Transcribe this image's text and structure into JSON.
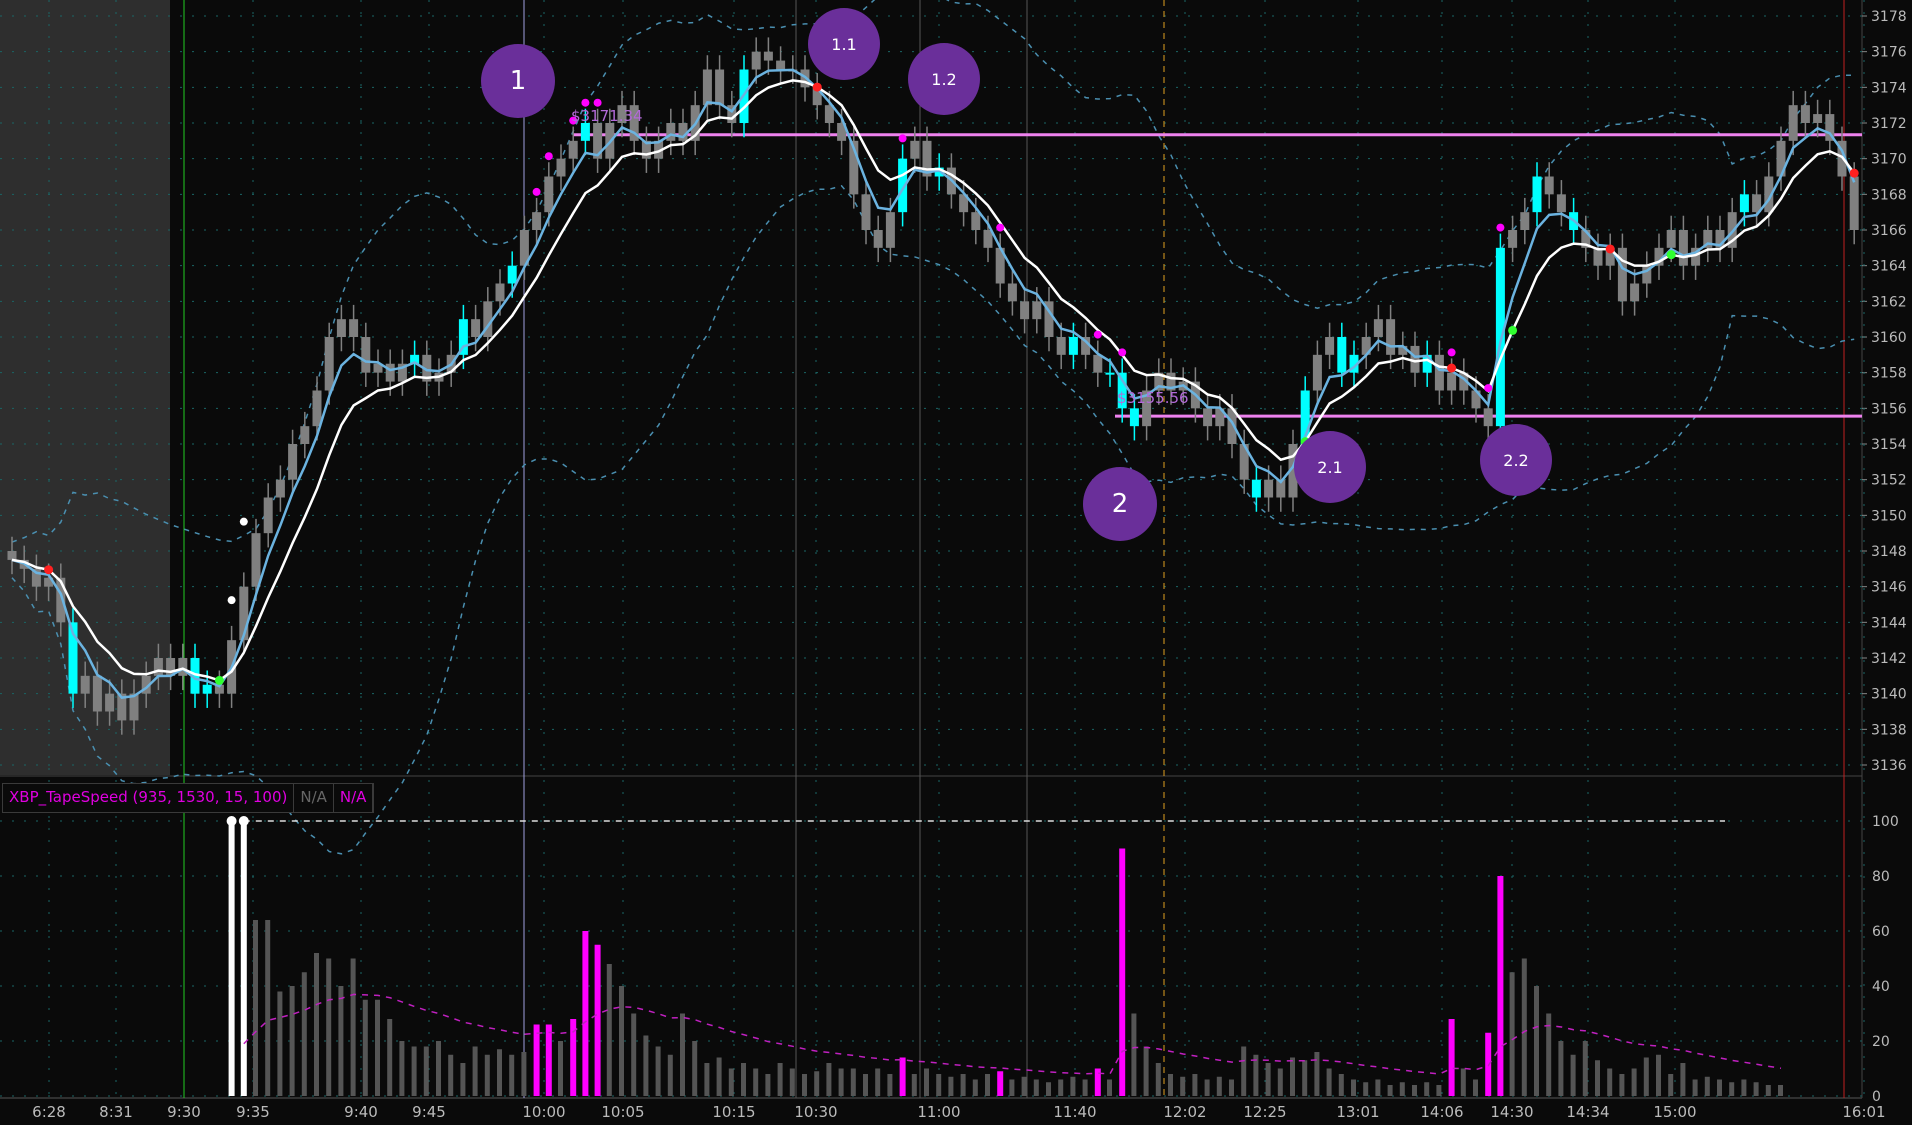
{
  "indicator": {
    "name": "XBP_TapeSpeed (935, 1530, 15, 100)",
    "value1": "N/A",
    "value2": "N/A"
  },
  "annotations": {
    "bubbles": [
      "1",
      "1.1",
      "1.2",
      "2",
      "2.1",
      "2.2"
    ],
    "level_high": "$3171.34",
    "level_low": "$3155.56"
  },
  "chart_data": {
    "type": "candlestick",
    "price_axis": {
      "min": 3136,
      "max": 3178,
      "step": 2,
      "ticks": [
        3136,
        3138,
        3140,
        3142,
        3144,
        3146,
        3148,
        3150,
        3152,
        3154,
        3156,
        3158,
        3160,
        3162,
        3164,
        3166,
        3168,
        3170,
        3172,
        3174,
        3176,
        3178
      ]
    },
    "time_ticks": [
      "6:28",
      "8:31",
      "9:30",
      "9:35",
      "9:40",
      "9:45",
      "10:00",
      "10:05",
      "10:15",
      "10:30",
      "11:00",
      "11:40",
      "12:02",
      "12:25",
      "13:01",
      "14:06",
      "14:30",
      "14:34",
      "15:00",
      "16:01"
    ],
    "horizontal_levels": [
      3171.34,
      3155.56
    ],
    "closes": [
      3147.5,
      3147,
      3146,
      3146.5,
      3144,
      3140,
      3141,
      3139,
      3140,
      3138.5,
      3140,
      3141,
      3142,
      3141,
      3142,
      3140,
      3140.5,
      3140,
      3143,
      3146,
      3149,
      3151,
      3152,
      3154,
      3155,
      3157,
      3160,
      3161,
      3160,
      3158,
      3158.5,
      3157.5,
      3158.5,
      3159,
      3157.5,
      3158,
      3159,
      3161,
      3160,
      3162,
      3163,
      3164,
      3166,
      3167,
      3169,
      3170,
      3171,
      3172,
      3170,
      3172,
      3173,
      3171,
      3170,
      3171,
      3172,
      3171,
      3173,
      3175,
      3173,
      3172,
      3175,
      3176,
      3175.5,
      3175,
      3175,
      3174,
      3173,
      3172,
      3171,
      3168,
      3166,
      3165,
      3167,
      3170,
      3171,
      3169,
      3169.5,
      3168,
      3167,
      3166,
      3165,
      3163,
      3162,
      3161,
      3162,
      3160,
      3159,
      3160,
      3159,
      3158,
      3158,
      3156,
      3155,
      3157,
      3158,
      3157,
      3157.5,
      3156,
      3155,
      3156,
      3154,
      3152,
      3151,
      3152,
      3151,
      3154,
      3157,
      3159,
      3160,
      3158,
      3159,
      3160,
      3161,
      3159,
      3159.5,
      3158,
      3159,
      3157,
      3158,
      3157,
      3156,
      3155,
      3165,
      3166,
      3167,
      3169,
      3168,
      3167,
      3166,
      3165,
      3164,
      3165,
      3162,
      3163,
      3164,
      3165,
      3166,
      3164,
      3165,
      3166,
      3165,
      3167,
      3168,
      3167,
      3169,
      3171,
      3173,
      3172,
      3172.5,
      3171,
      3169,
      3166
    ],
    "highlight_candles": [
      5,
      15,
      16,
      33,
      37,
      41,
      47,
      60,
      73,
      76,
      87,
      90,
      91,
      92,
      102,
      106,
      109,
      110,
      116,
      122,
      125,
      128,
      142
    ],
    "signal_dots": {
      "magenta": [
        43,
        44,
        46,
        47,
        48,
        73,
        81,
        89,
        91,
        118,
        121,
        122
      ],
      "red": [
        3,
        66,
        118,
        131,
        152
      ],
      "green": [
        17,
        106,
        123,
        136
      ],
      "white": [
        18,
        19
      ]
    },
    "indicator_axis": {
      "min": 0,
      "max": 100,
      "ticks": [
        0,
        20,
        40,
        60,
        80,
        100
      ]
    },
    "tape_speed": [
      0,
      0,
      0,
      0,
      0,
      0,
      0,
      0,
      0,
      0,
      0,
      0,
      0,
      0,
      0,
      0,
      0,
      0,
      100,
      100,
      64,
      64,
      38,
      40,
      45,
      52,
      50,
      40,
      50,
      35,
      35,
      28,
      20,
      18,
      18,
      20,
      15,
      12,
      18,
      15,
      17,
      15,
      16,
      26,
      26,
      20,
      28,
      60,
      55,
      48,
      40,
      30,
      22,
      18,
      15,
      30,
      20,
      12,
      14,
      10,
      12,
      10,
      8,
      12,
      10,
      8,
      9,
      12,
      10,
      10,
      8,
      10,
      8,
      14,
      8,
      10,
      8,
      7,
      8,
      6,
      8,
      9,
      6,
      7,
      6,
      5,
      6,
      7,
      6,
      10,
      6,
      90,
      30,
      18,
      12,
      8,
      7,
      8,
      6,
      7,
      6,
      18,
      15,
      12,
      10,
      14,
      13,
      16,
      10,
      8,
      6,
      5,
      6,
      4,
      5,
      4,
      5,
      4,
      28,
      10,
      6,
      23,
      80,
      45,
      50,
      40,
      30,
      20,
      15,
      20,
      13,
      10,
      8,
      10,
      14,
      15,
      8,
      12,
      6,
      7,
      6,
      5,
      6,
      5,
      4,
      4,
      0,
      0,
      0,
      0,
      0,
      0
    ],
    "tape_speed_highlight": [
      43,
      44,
      46,
      47,
      48,
      73,
      81,
      89,
      91,
      118,
      121,
      122
    ],
    "tape_speed_threshold": 100,
    "colors": {
      "up_highlight": "#00ffff",
      "candle": "#808080",
      "fast_ma": "#6bb3e0",
      "slow_ma": "#ffffff",
      "bands": "#4a8fb0",
      "level": "#ee82ee",
      "signal": "#ff00ff",
      "bubble": "#6a2f9a"
    }
  }
}
